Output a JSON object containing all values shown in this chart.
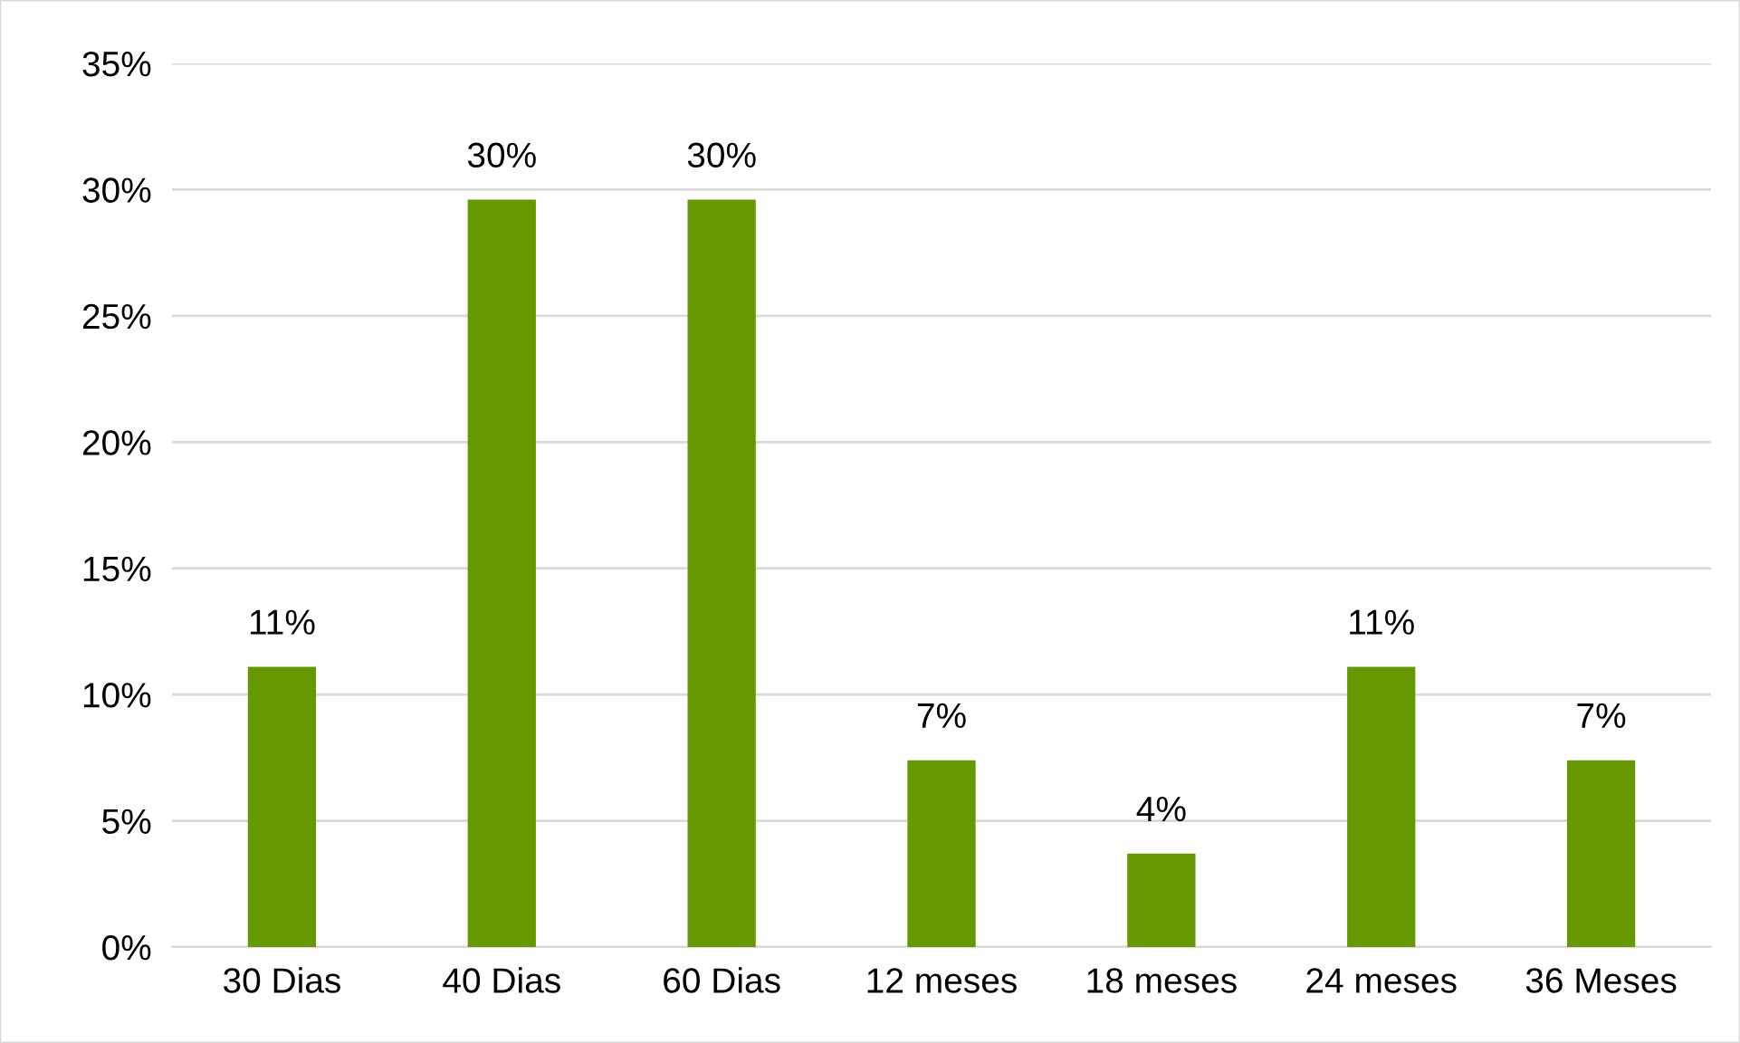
{
  "chart_data": {
    "type": "bar",
    "categories": [
      "30 Dias",
      "40 Dias",
      "60 Dias",
      "12 meses",
      "18 meses",
      "24 meses",
      "36 Meses"
    ],
    "values": [
      11.1,
      29.6,
      29.6,
      7.4,
      3.7,
      11.1,
      7.4
    ],
    "value_labels": [
      "11%",
      "30%",
      "30%",
      "7%",
      "4%",
      "11%",
      "7%"
    ],
    "color": "#669900",
    "ylim": [
      0,
      35
    ],
    "yticks": [
      {
        "value": 0,
        "label": "0%"
      },
      {
        "value": 5,
        "label": "5%"
      },
      {
        "value": 10,
        "label": "10%"
      },
      {
        "value": 15,
        "label": "15%"
      },
      {
        "value": 20,
        "label": "20%"
      },
      {
        "value": 25,
        "label": "25%"
      },
      {
        "value": 30,
        "label": "30%"
      },
      {
        "value": 35,
        "label": "35%"
      }
    ],
    "grid": "y",
    "legend": false
  }
}
